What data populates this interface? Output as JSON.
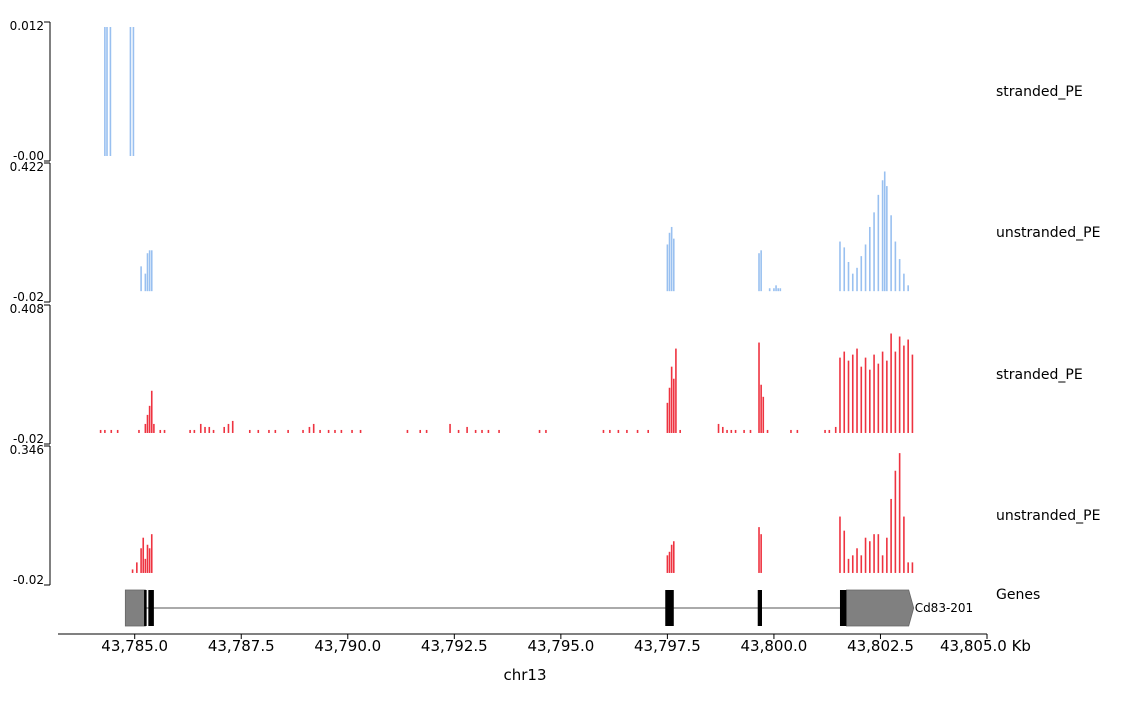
{
  "chart_data": {
    "type": "genome-coverage-tracks",
    "xlabel": "chr13",
    "x_unit_label": "Kb",
    "xlim": [
      43783.2,
      43805.0
    ],
    "x_ticks": [
      43785.0,
      43787.5,
      43790.0,
      43792.5,
      43795.0,
      43797.5,
      43800.0,
      43802.5,
      43805.0
    ],
    "x_tick_labels": [
      "43,785.0",
      "43,787.5",
      "43,790.0",
      "43,792.5",
      "43,795.0",
      "43,797.5",
      "43,800.0",
      "43,802.5",
      "43,805.0"
    ],
    "colors": {
      "blue": "#99c0f0",
      "red": "#ee3340",
      "gene": "#808080",
      "exon": "#000000"
    },
    "tracks": [
      {
        "label": "stranded_PE",
        "color": "#99c0f0",
        "ylim": [
          -0.0,
          0.012
        ],
        "ymax_label": "0.012",
        "ymin_label": "-0.00",
        "bars": [
          [
            43784.3,
            0.012
          ],
          [
            43784.35,
            0.012
          ],
          [
            43784.43,
            0.012
          ],
          [
            43784.9,
            0.012
          ],
          [
            43784.97,
            0.012
          ]
        ]
      },
      {
        "label": "unstranded_PE",
        "color": "#99c0f0",
        "ylim": [
          -0.02,
          0.422
        ],
        "ymax_label": "0.422",
        "ymin_label": "-0.02",
        "bars": [
          [
            43785.15,
            0.085
          ],
          [
            43785.25,
            0.06
          ],
          [
            43785.3,
            0.13
          ],
          [
            43785.35,
            0.14
          ],
          [
            43785.4,
            0.14
          ],
          [
            43797.5,
            0.16
          ],
          [
            43797.55,
            0.2
          ],
          [
            43797.6,
            0.22
          ],
          [
            43797.65,
            0.18
          ],
          [
            43799.65,
            0.13
          ],
          [
            43799.7,
            0.14
          ],
          [
            43799.9,
            0.01
          ],
          [
            43800.0,
            0.01
          ],
          [
            43800.05,
            0.02
          ],
          [
            43800.1,
            0.01
          ],
          [
            43800.15,
            0.01
          ],
          [
            43801.55,
            0.17
          ],
          [
            43801.65,
            0.15
          ],
          [
            43801.75,
            0.1
          ],
          [
            43801.85,
            0.06
          ],
          [
            43801.95,
            0.08
          ],
          [
            43802.05,
            0.12
          ],
          [
            43802.15,
            0.16
          ],
          [
            43802.25,
            0.22
          ],
          [
            43802.35,
            0.27
          ],
          [
            43802.45,
            0.33
          ],
          [
            43802.55,
            0.38
          ],
          [
            43802.6,
            0.41
          ],
          [
            43802.65,
            0.36
          ],
          [
            43802.75,
            0.26
          ],
          [
            43802.85,
            0.17
          ],
          [
            43802.95,
            0.11
          ],
          [
            43803.05,
            0.06
          ],
          [
            43803.15,
            0.02
          ]
        ]
      },
      {
        "label": "stranded_PE",
        "color": "#ee3340",
        "ylim": [
          -0.02,
          0.408
        ],
        "ymax_label": "0.408",
        "ymin_label": "-0.02",
        "bars": [
          [
            43784.2,
            0.01
          ],
          [
            43784.3,
            0.01
          ],
          [
            43784.45,
            0.01
          ],
          [
            43784.6,
            0.01
          ],
          [
            43785.1,
            0.01
          ],
          [
            43785.25,
            0.03
          ],
          [
            43785.3,
            0.06
          ],
          [
            43785.35,
            0.09
          ],
          [
            43785.4,
            0.14
          ],
          [
            43785.45,
            0.03
          ],
          [
            43785.6,
            0.01
          ],
          [
            43785.7,
            0.01
          ],
          [
            43786.3,
            0.01
          ],
          [
            43786.4,
            0.01
          ],
          [
            43786.55,
            0.03
          ],
          [
            43786.65,
            0.02
          ],
          [
            43786.75,
            0.02
          ],
          [
            43786.85,
            0.01
          ],
          [
            43787.1,
            0.02
          ],
          [
            43787.2,
            0.03
          ],
          [
            43787.3,
            0.04
          ],
          [
            43787.7,
            0.01
          ],
          [
            43787.9,
            0.01
          ],
          [
            43788.15,
            0.01
          ],
          [
            43788.3,
            0.01
          ],
          [
            43788.6,
            0.01
          ],
          [
            43788.95,
            0.01
          ],
          [
            43789.1,
            0.02
          ],
          [
            43789.2,
            0.03
          ],
          [
            43789.35,
            0.01
          ],
          [
            43789.55,
            0.01
          ],
          [
            43789.7,
            0.01
          ],
          [
            43789.85,
            0.01
          ],
          [
            43790.1,
            0.01
          ],
          [
            43790.3,
            0.01
          ],
          [
            43791.4,
            0.01
          ],
          [
            43791.7,
            0.01
          ],
          [
            43791.85,
            0.01
          ],
          [
            43792.4,
            0.03
          ],
          [
            43792.6,
            0.01
          ],
          [
            43792.8,
            0.02
          ],
          [
            43793.0,
            0.01
          ],
          [
            43793.15,
            0.01
          ],
          [
            43793.3,
            0.01
          ],
          [
            43793.55,
            0.01
          ],
          [
            43794.5,
            0.01
          ],
          [
            43794.65,
            0.01
          ],
          [
            43796.0,
            0.01
          ],
          [
            43796.15,
            0.01
          ],
          [
            43796.35,
            0.01
          ],
          [
            43796.55,
            0.01
          ],
          [
            43796.8,
            0.01
          ],
          [
            43797.05,
            0.01
          ],
          [
            43797.5,
            0.1
          ],
          [
            43797.55,
            0.15
          ],
          [
            43797.6,
            0.22
          ],
          [
            43797.65,
            0.18
          ],
          [
            43797.7,
            0.28
          ],
          [
            43797.8,
            0.01
          ],
          [
            43798.7,
            0.03
          ],
          [
            43798.8,
            0.02
          ],
          [
            43798.9,
            0.01
          ],
          [
            43799.0,
            0.01
          ],
          [
            43799.1,
            0.01
          ],
          [
            43799.3,
            0.01
          ],
          [
            43799.45,
            0.01
          ],
          [
            43799.65,
            0.3
          ],
          [
            43799.7,
            0.16
          ],
          [
            43799.75,
            0.12
          ],
          [
            43799.85,
            0.01
          ],
          [
            43800.4,
            0.01
          ],
          [
            43800.55,
            0.01
          ],
          [
            43801.2,
            0.01
          ],
          [
            43801.3,
            0.01
          ],
          [
            43801.45,
            0.02
          ],
          [
            43801.55,
            0.25
          ],
          [
            43801.65,
            0.27
          ],
          [
            43801.75,
            0.24
          ],
          [
            43801.85,
            0.26
          ],
          [
            43801.95,
            0.28
          ],
          [
            43802.05,
            0.22
          ],
          [
            43802.15,
            0.25
          ],
          [
            43802.25,
            0.21
          ],
          [
            43802.35,
            0.26
          ],
          [
            43802.45,
            0.23
          ],
          [
            43802.55,
            0.27
          ],
          [
            43802.65,
            0.24
          ],
          [
            43802.75,
            0.33
          ],
          [
            43802.85,
            0.27
          ],
          [
            43802.95,
            0.32
          ],
          [
            43803.05,
            0.29
          ],
          [
            43803.15,
            0.31
          ],
          [
            43803.25,
            0.26
          ]
        ]
      },
      {
        "label": "unstranded_PE",
        "color": "#ee3340",
        "ylim": [
          -0.02,
          0.346
        ],
        "ymax_label": "0.346",
        "ymin_label": "-0.02",
        "bars": [
          [
            43784.95,
            0.01
          ],
          [
            43785.05,
            0.03
          ],
          [
            43785.15,
            0.07
          ],
          [
            43785.2,
            0.1
          ],
          [
            43785.25,
            0.04
          ],
          [
            43785.3,
            0.08
          ],
          [
            43785.35,
            0.07
          ],
          [
            43785.4,
            0.11
          ],
          [
            43797.5,
            0.05
          ],
          [
            43797.55,
            0.06
          ],
          [
            43797.6,
            0.08
          ],
          [
            43797.65,
            0.09
          ],
          [
            43799.65,
            0.13
          ],
          [
            43799.7,
            0.11
          ],
          [
            43801.55,
            0.16
          ],
          [
            43801.65,
            0.12
          ],
          [
            43801.75,
            0.04
          ],
          [
            43801.85,
            0.05
          ],
          [
            43801.95,
            0.07
          ],
          [
            43802.05,
            0.05
          ],
          [
            43802.15,
            0.1
          ],
          [
            43802.25,
            0.09
          ],
          [
            43802.35,
            0.11
          ],
          [
            43802.45,
            0.11
          ],
          [
            43802.55,
            0.05
          ],
          [
            43802.65,
            0.1
          ],
          [
            43802.75,
            0.21
          ],
          [
            43802.85,
            0.29
          ],
          [
            43802.95,
            0.34
          ],
          [
            43803.05,
            0.16
          ],
          [
            43803.15,
            0.03
          ],
          [
            43803.25,
            0.03
          ]
        ]
      }
    ],
    "genes_track": {
      "label": "Genes",
      "genes": [
        {
          "name": "Cd83-201",
          "start": 43784.78,
          "end": 43803.28,
          "strand": "+",
          "utr": [
            [
              43784.78,
              43785.25
            ],
            [
              43801.7,
              43803.28
            ]
          ],
          "exons": [
            [
              43785.22,
              43785.28
            ],
            [
              43785.32,
              43785.45
            ],
            [
              43797.45,
              43797.65
            ],
            [
              43799.62,
              43799.72
            ],
            [
              43801.55,
              43801.7
            ]
          ]
        }
      ]
    }
  }
}
